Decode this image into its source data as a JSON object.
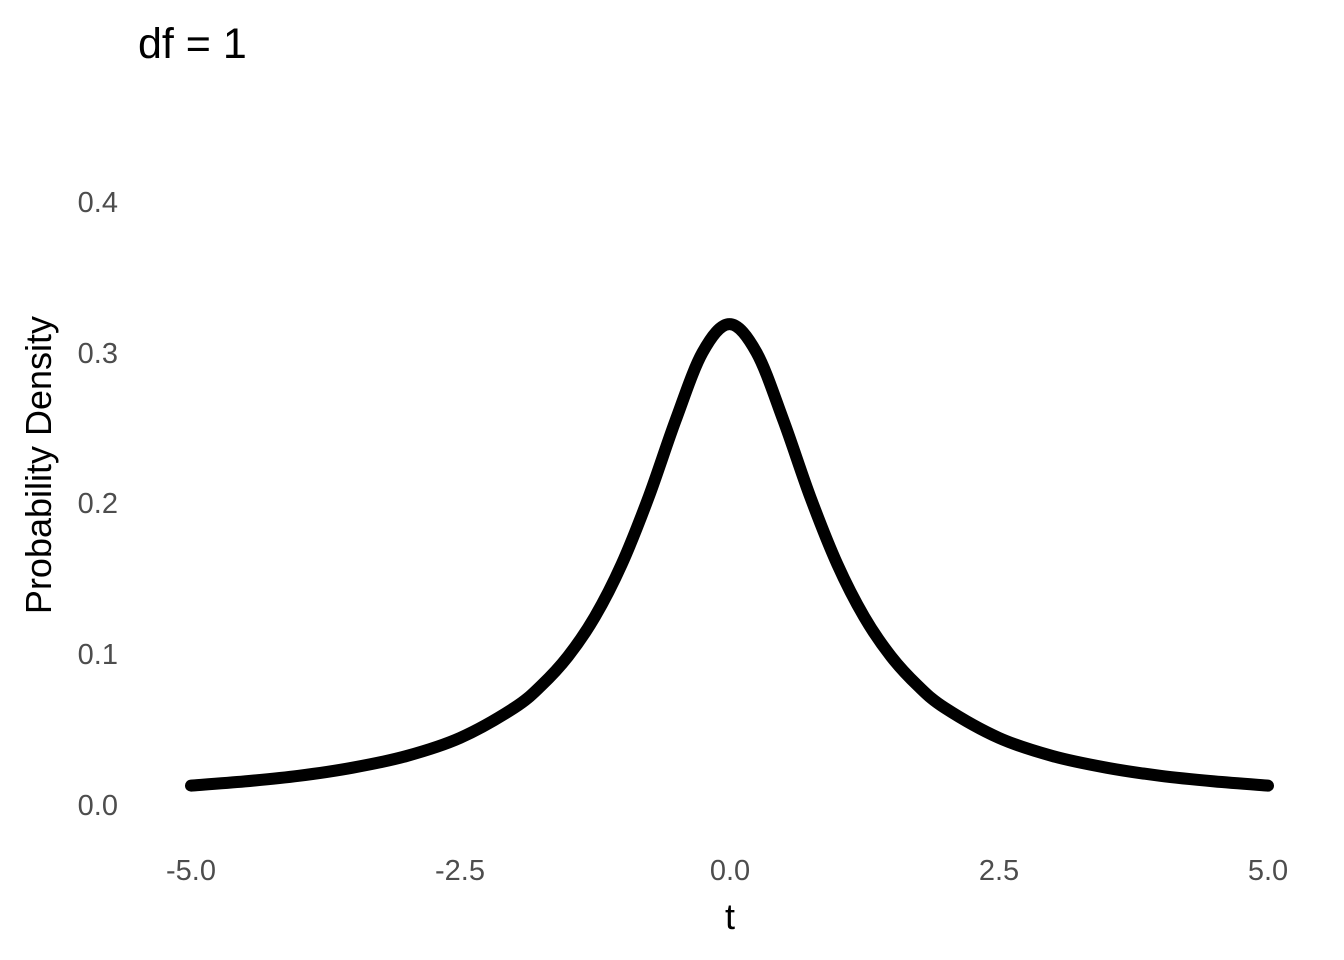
{
  "chart_data": {
    "type": "line",
    "title": "df = 1",
    "xlabel": "t",
    "ylabel": "Probability Density",
    "xlim": [
      -5.0,
      5.0
    ],
    "ylim": [
      0.0,
      0.4
    ],
    "x_ticks": [
      -5.0,
      -2.5,
      0.0,
      2.5,
      5.0
    ],
    "x_tick_labels": [
      "-5.0",
      "-2.5",
      "0.0",
      "2.5",
      "5.0"
    ],
    "y_ticks": [
      0.0,
      0.1,
      0.2,
      0.3,
      0.4
    ],
    "y_tick_labels": [
      "0.0",
      "0.1",
      "0.2",
      "0.3",
      "0.4"
    ],
    "grid": false,
    "legend": "none",
    "line_color": "#000000",
    "series": [
      {
        "x": [
          -5.0,
          -4.5,
          -4.0,
          -3.5,
          -3.0,
          -2.5,
          -2.0,
          -1.75,
          -1.5,
          -1.25,
          -1.0,
          -0.75,
          -0.5,
          -0.25,
          0.0,
          0.25,
          0.5,
          0.75,
          1.0,
          1.25,
          1.5,
          1.75,
          2.0,
          2.5,
          3.0,
          3.5,
          4.0,
          4.5,
          5.0
        ],
        "y": [
          0.0122,
          0.015,
          0.0187,
          0.0241,
          0.0318,
          0.0439,
          0.0637,
          0.0784,
          0.0979,
          0.1242,
          0.1592,
          0.2037,
          0.2546,
          0.2996,
          0.3183,
          0.2996,
          0.2546,
          0.2037,
          0.1592,
          0.1242,
          0.0979,
          0.0784,
          0.0637,
          0.0439,
          0.0318,
          0.0241,
          0.0187,
          0.015,
          0.0122
        ]
      }
    ]
  }
}
